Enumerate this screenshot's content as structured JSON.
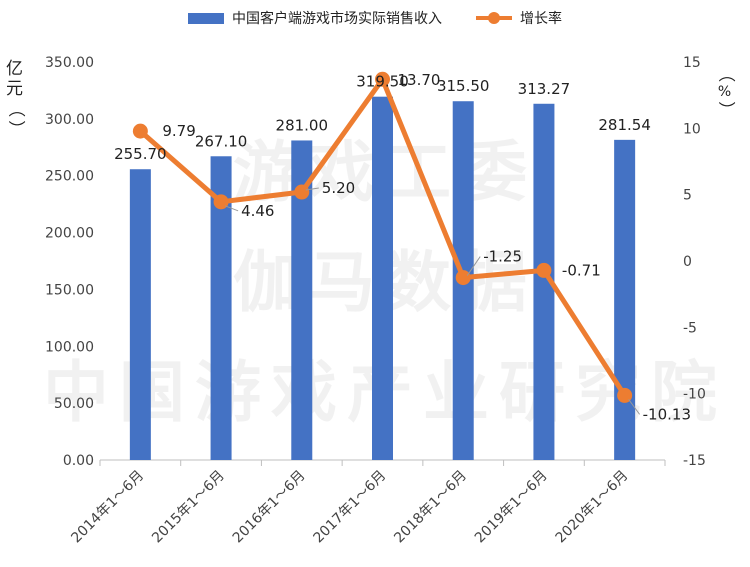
{
  "legend": {
    "bar_label": "中国客户端游戏市场实际销售收入",
    "line_label": "增长率"
  },
  "axes": {
    "left_unit": [
      "亿",
      "元",
      "（",
      "）"
    ],
    "right_unit": [
      "（",
      "%",
      "）"
    ],
    "left_ticks": [
      "0.00",
      "50.00",
      "100.00",
      "150.00",
      "200.00",
      "250.00",
      "300.00",
      "350.00"
    ],
    "right_ticks": [
      "-15",
      "-10",
      "-5",
      "0",
      "5",
      "10",
      "15"
    ]
  },
  "watermark": [
    "游戏工委",
    "伽马数据",
    "中国游戏产业研究院"
  ],
  "colors": {
    "bar": "#4472c4",
    "line": "#ed7d31",
    "grid": "#d9d9d9",
    "axis": "#bfbfbf"
  },
  "chart_data": {
    "type": "bar",
    "categories": [
      "2014年1～6月",
      "2015年1～6月",
      "2016年1～6月",
      "2017年1～6月",
      "2018年1～6月",
      "2019年1～6月",
      "2020年1～6月"
    ],
    "series": [
      {
        "name": "中国客户端游戏市场实际销售收入",
        "type": "bar",
        "axis": "left",
        "values": [
          255.7,
          267.1,
          281.0,
          319.5,
          315.5,
          313.27,
          281.54
        ],
        "labels": [
          "255.70",
          "267.10",
          "281.00",
          "319.50",
          "315.50",
          "313.27",
          "281.54"
        ]
      },
      {
        "name": "增长率",
        "type": "line",
        "axis": "right",
        "values": [
          9.79,
          4.46,
          5.2,
          13.7,
          -1.25,
          -0.71,
          -10.13
        ],
        "labels": [
          "9.79",
          "4.46",
          "5.20",
          "13.70",
          "-1.25",
          "-0.71",
          "-10.13"
        ]
      }
    ],
    "y_left_lim": [
      0,
      350
    ],
    "y_right_lim": [
      -15,
      15
    ],
    "grid": false,
    "legend_position": "top"
  }
}
